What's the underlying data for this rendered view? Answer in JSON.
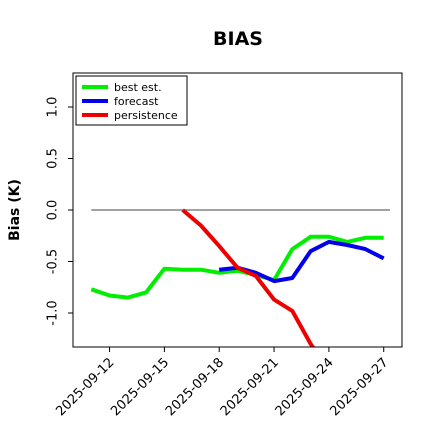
{
  "chart_data": {
    "type": "line",
    "title": "BIAS",
    "xlabel": "",
    "ylabel": "Bias (K)",
    "x": [
      "2025-09-11",
      "2025-09-12",
      "2025-09-13",
      "2025-09-14",
      "2025-09-15",
      "2025-09-16",
      "2025-09-17",
      "2025-09-18",
      "2025-09-19",
      "2025-09-20",
      "2025-09-21",
      "2025-09-22",
      "2025-09-23",
      "2025-09-24",
      "2025-09-25",
      "2025-09-26",
      "2025-09-27"
    ],
    "xlim": [
      "2025-09-10",
      "2025-09-28"
    ],
    "ylim": [
      -1.33,
      1.33
    ],
    "yticks": [
      -1.0,
      -0.5,
      0.0,
      0.5,
      1.0
    ],
    "ytick_labels": [
      "-1.0",
      "-0.5",
      "0.0",
      "0.5",
      "1.0"
    ],
    "xticks": [
      "2025-09-12",
      "2025-09-15",
      "2025-09-18",
      "2025-09-21",
      "2025-09-24",
      "2025-09-27"
    ],
    "xtick_labels": [
      "2025-09-12",
      "2025-09-15",
      "2025-09-18",
      "2025-09-21",
      "2025-09-24",
      "2025-09-27"
    ],
    "xtick_colors": [
      "#000000",
      "#000000",
      "#228B22",
      "#000000",
      "#000000",
      "#000000"
    ],
    "zero_line": {
      "y": 0.0,
      "x_from": "2025-09-11",
      "x_to": "2025-09-28"
    },
    "legend": {
      "placement": "top-left"
    },
    "series": [
      {
        "name": "best est.",
        "color": "#00ee00",
        "points": [
          [
            "2025-09-11",
            -0.77
          ],
          [
            "2025-09-12",
            -0.83
          ],
          [
            "2025-09-13",
            -0.85
          ],
          [
            "2025-09-14",
            -0.8
          ],
          [
            "2025-09-15",
            -0.57
          ],
          [
            "2025-09-16",
            -0.58
          ],
          [
            "2025-09-17",
            -0.58
          ],
          [
            "2025-09-18",
            -0.61
          ],
          [
            "2025-09-19",
            -0.59
          ],
          [
            "2025-09-20",
            -0.63
          ],
          [
            "2025-09-21",
            -0.68
          ],
          [
            "2025-09-22",
            -0.38
          ],
          [
            "2025-09-23",
            -0.26
          ],
          [
            "2025-09-24",
            -0.26
          ],
          [
            "2025-09-25",
            -0.31
          ],
          [
            "2025-09-26",
            -0.27
          ],
          [
            "2025-09-27",
            -0.27
          ]
        ]
      },
      {
        "name": "forecast",
        "color": "#0000ee",
        "points": [
          [
            "2025-09-18",
            -0.58
          ],
          [
            "2025-09-19",
            -0.56
          ],
          [
            "2025-09-20",
            -0.61
          ],
          [
            "2025-09-21",
            -0.69
          ],
          [
            "2025-09-22",
            -0.66
          ],
          [
            "2025-09-23",
            -0.4
          ],
          [
            "2025-09-24",
            -0.31
          ],
          [
            "2025-09-25",
            -0.34
          ],
          [
            "2025-09-26",
            -0.38
          ],
          [
            "2025-09-27",
            -0.47
          ]
        ]
      },
      {
        "name": "persistence",
        "color": "#ee0000",
        "points": [
          [
            "2025-09-16",
            0.0
          ],
          [
            "2025-09-17",
            -0.15
          ],
          [
            "2025-09-18",
            -0.35
          ],
          [
            "2025-09-19",
            -0.56
          ],
          [
            "2025-09-20",
            -0.64
          ],
          [
            "2025-09-21",
            -0.87
          ],
          [
            "2025-09-22",
            -0.98
          ],
          [
            "2025-09-23",
            -1.3
          ],
          [
            "2025-09-24",
            -1.55
          ]
        ]
      }
    ]
  }
}
